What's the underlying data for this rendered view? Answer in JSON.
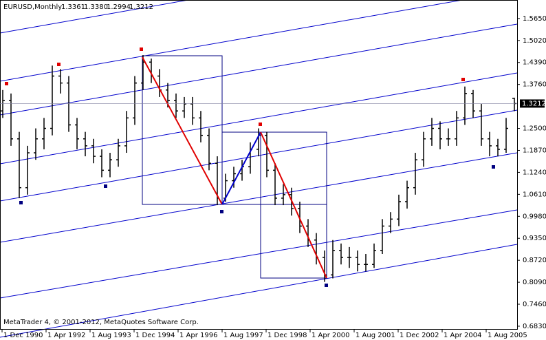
{
  "chart_data": {
    "type": "ohlc",
    "title": "EURUSD,Monthly",
    "quote": {
      "values": [
        1.3361,
        1.338,
        1.2994,
        1.3212
      ],
      "value_labels": [
        "1.3361",
        "1.3380",
        "1.2994",
        "1.3212"
      ]
    },
    "footer": "MetaTrader 4, © 2001-2012, MetaQuotes Software Corp.",
    "color": "#000000",
    "x": [
      0,
      3,
      6,
      9,
      12,
      15,
      18,
      21,
      24,
      27,
      30,
      33,
      36,
      39,
      42,
      45,
      48,
      51,
      54,
      57,
      60,
      63,
      66,
      69,
      72,
      75,
      78,
      81,
      84,
      87,
      90,
      93,
      96,
      99,
      102,
      105,
      108,
      111,
      114,
      117,
      120,
      123,
      126,
      129,
      132,
      135,
      138,
      141,
      144,
      147,
      150,
      153,
      156,
      159,
      162,
      165,
      168,
      171,
      174,
      177,
      180,
      183,
      186
    ],
    "open": [
      1.3,
      1.33,
      1.22,
      1.08,
      1.18,
      1.22,
      1.25,
      1.4,
      1.38,
      1.26,
      1.22,
      1.2,
      1.17,
      1.13,
      1.16,
      1.2,
      1.28,
      1.38,
      1.44,
      1.4,
      1.36,
      1.33,
      1.3,
      1.32,
      1.28,
      1.23,
      1.15,
      1.05,
      1.1,
      1.12,
      1.14,
      1.19,
      1.23,
      1.13,
      1.05,
      1.06,
      1.02,
      0.97,
      0.93,
      0.88,
      0.83,
      0.9,
      0.88,
      0.88,
      0.86,
      0.86,
      0.9,
      0.97,
      0.99,
      1.04,
      1.08,
      1.16,
      1.22,
      1.25,
      1.22,
      1.22,
      1.28,
      1.35,
      1.3,
      1.22,
      1.2,
      1.19,
      1.3361
    ],
    "high": [
      1.36,
      1.35,
      1.24,
      1.2,
      1.25,
      1.28,
      1.43,
      1.42,
      1.4,
      1.28,
      1.24,
      1.22,
      1.19,
      1.18,
      1.22,
      1.3,
      1.4,
      1.46,
      1.45,
      1.42,
      1.38,
      1.35,
      1.34,
      1.34,
      1.3,
      1.25,
      1.17,
      1.12,
      1.14,
      1.16,
      1.21,
      1.25,
      1.24,
      1.15,
      1.09,
      1.08,
      1.04,
      0.99,
      0.95,
      0.9,
      0.93,
      0.92,
      0.91,
      0.9,
      0.89,
      0.92,
      0.99,
      1.01,
      1.06,
      1.1,
      1.18,
      1.24,
      1.28,
      1.27,
      1.25,
      1.3,
      1.37,
      1.36,
      1.32,
      1.24,
      1.22,
      1.28,
      1.338
    ],
    "low": [
      1.28,
      1.2,
      1.05,
      1.06,
      1.16,
      1.19,
      1.23,
      1.35,
      1.24,
      1.19,
      1.17,
      1.15,
      1.11,
      1.11,
      1.14,
      1.18,
      1.26,
      1.36,
      1.38,
      1.34,
      1.31,
      1.28,
      1.28,
      1.26,
      1.21,
      1.13,
      1.03,
      1.04,
      1.08,
      1.1,
      1.12,
      1.17,
      1.11,
      1.03,
      1.03,
      1.0,
      0.95,
      0.91,
      0.86,
      0.81,
      0.82,
      0.86,
      0.85,
      0.84,
      0.84,
      0.85,
      0.89,
      0.95,
      0.97,
      1.02,
      1.06,
      1.14,
      1.2,
      1.19,
      1.2,
      1.2,
      1.26,
      1.28,
      1.2,
      1.17,
      1.17,
      1.18,
      1.2994
    ],
    "close": [
      1.33,
      1.22,
      1.08,
      1.18,
      1.22,
      1.25,
      1.4,
      1.38,
      1.26,
      1.22,
      1.2,
      1.17,
      1.13,
      1.16,
      1.2,
      1.28,
      1.38,
      1.44,
      1.4,
      1.36,
      1.33,
      1.3,
      1.32,
      1.28,
      1.23,
      1.15,
      1.05,
      1.1,
      1.12,
      1.14,
      1.19,
      1.23,
      1.13,
      1.05,
      1.06,
      1.02,
      0.97,
      0.93,
      0.88,
      0.83,
      0.9,
      0.88,
      0.88,
      0.86,
      0.86,
      0.9,
      0.97,
      0.99,
      1.04,
      1.08,
      1.16,
      1.22,
      1.25,
      1.22,
      1.22,
      1.28,
      1.35,
      1.3,
      1.22,
      1.2,
      1.19,
      1.25,
      1.3212
    ],
    "xlim": [
      -1,
      187
    ],
    "xticks": [
      {
        "value": 0,
        "label": "1 Dec 1990"
      },
      {
        "value": 16,
        "label": "1 Apr 1992"
      },
      {
        "value": 32,
        "label": "1 Aug 1993"
      },
      {
        "value": 48,
        "label": "1 Dec 1994"
      },
      {
        "value": 64,
        "label": "1 Apr 1996"
      },
      {
        "value": 80,
        "label": "1 Aug 1997"
      },
      {
        "value": 96,
        "label": "1 Dec 1998"
      },
      {
        "value": 112,
        "label": "1 Apr 2000"
      },
      {
        "value": 128,
        "label": "1 Aug 2001"
      },
      {
        "value": 144,
        "label": "1 Dec 2002"
      },
      {
        "value": 160,
        "label": "1 Apr 2004"
      },
      {
        "value": 176,
        "label": "1 Aug 2005"
      }
    ],
    "ylim": [
      0.675,
      1.618
    ],
    "yticks": [
      {
        "value": 1.565,
        "label": "1.5650"
      },
      {
        "value": 1.502,
        "label": "1.5020"
      },
      {
        "value": 1.439,
        "label": "1.4390"
      },
      {
        "value": 1.376,
        "label": "1.3760"
      },
      {
        "value": 1.25,
        "label": "1.2500"
      },
      {
        "value": 1.187,
        "label": "1.1870"
      },
      {
        "value": 1.124,
        "label": "1.1240"
      },
      {
        "value": 1.061,
        "label": "1.0610"
      },
      {
        "value": 0.998,
        "label": "0.9980"
      },
      {
        "value": 0.935,
        "label": "0.9350"
      },
      {
        "value": 0.872,
        "label": "0.8720"
      },
      {
        "value": 0.809,
        "label": "0.8090"
      },
      {
        "value": 0.746,
        "label": "0.7460"
      },
      {
        "value": 0.683,
        "label": "0.6830"
      }
    ]
  }
}
